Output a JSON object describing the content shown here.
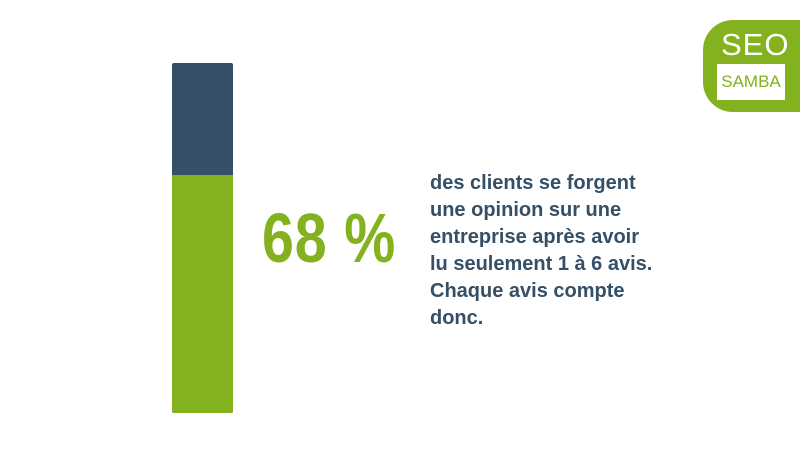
{
  "stat": {
    "percent_label": "68 %",
    "fill_fraction": 0.68,
    "lines": [
      "des clients se forgent",
      "une opinion sur une",
      "entreprise après avoir",
      "lu seulement 1 à 6 avis.",
      "Chaque avis compte",
      "donc."
    ]
  },
  "logo": {
    "top": "SEO",
    "bottom": "SAMBA"
  },
  "colors": {
    "accent": "#84b11e",
    "dark": "#344f66"
  }
}
